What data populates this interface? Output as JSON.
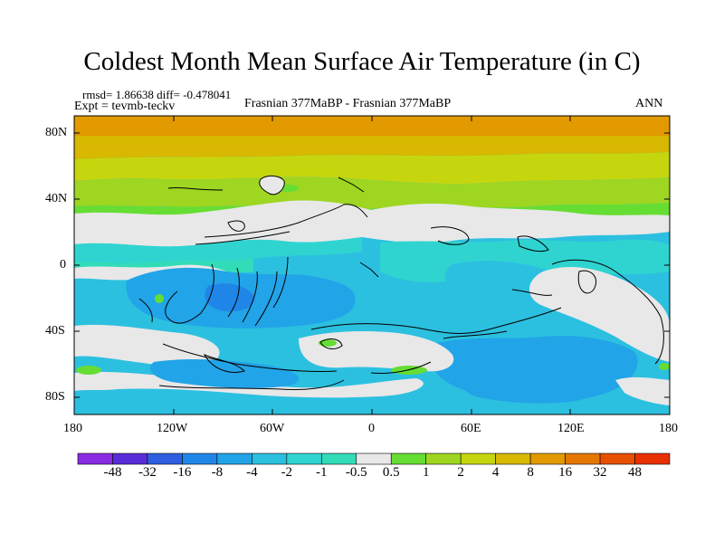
{
  "title": "Coldest Month Mean Surface Air Temperature (in C)",
  "stats": {
    "rmsd_label": "rmsd= 1.86638 diff= -0.478041",
    "expt_label": "Expt = tevmb-teckv",
    "comparison": "Frasnian 377MaBP - Frasnian 377MaBP",
    "season": "ANN"
  },
  "lat_ticks": [
    "80N",
    "40N",
    "0",
    "40S",
    "80S"
  ],
  "lon_ticks": [
    "180",
    "120W",
    "60W",
    "0",
    "60E",
    "120E",
    "180"
  ],
  "colorbar": {
    "labels": [
      "-48",
      "-32",
      "-16",
      "-8",
      "-4",
      "-2",
      "-1",
      "-0.5",
      "0.5",
      "1",
      "2",
      "4",
      "8",
      "16",
      "32",
      "48"
    ],
    "colors": [
      "#8a2be2",
      "#5a2cd8",
      "#2f5fe0",
      "#1f86e8",
      "#22a4e8",
      "#2cc0e0",
      "#2fd4d0",
      "#33dcb8",
      "#e8e8e8",
      "#66dd33",
      "#9ed622",
      "#c6d60e",
      "#d8b800",
      "#e29a00",
      "#e47700",
      "#e65000",
      "#e83000"
    ]
  },
  "palette": {
    "orange": "#e29a00",
    "gold": "#d8b800",
    "yellow_green": "#c6d60e",
    "lime": "#9ed622",
    "green": "#66dd33",
    "white": "#e8e8e8",
    "aqua": "#33dcb8",
    "teal": "#2fd4d0",
    "cyan": "#2cc0e0",
    "sky": "#22a4e8",
    "blue": "#1f86e8"
  }
}
